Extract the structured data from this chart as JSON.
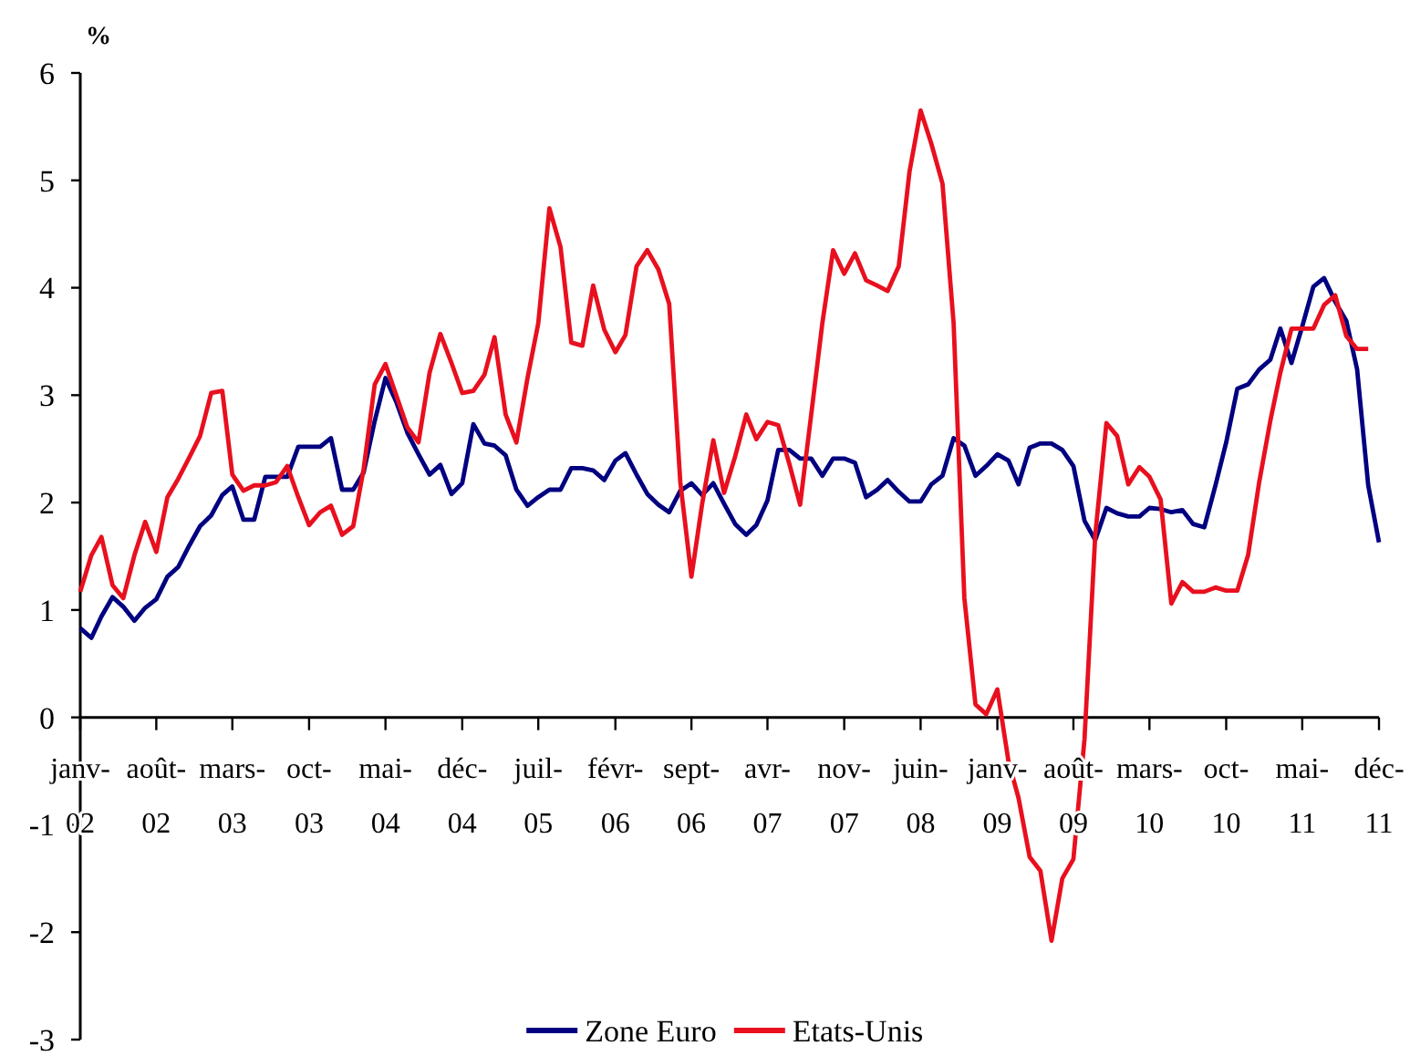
{
  "chart_data": {
    "type": "line",
    "ylabel": "%",
    "x": [
      "2002-01",
      "2002-02",
      "2002-03",
      "2002-04",
      "2002-05",
      "2002-06",
      "2002-07",
      "2002-08",
      "2002-09",
      "2002-10",
      "2002-11",
      "2002-12",
      "2003-01",
      "2003-02",
      "2003-03",
      "2003-04",
      "2003-05",
      "2003-06",
      "2003-07",
      "2003-08",
      "2003-09",
      "2003-10",
      "2003-11",
      "2003-12",
      "2004-01",
      "2004-02",
      "2004-03",
      "2004-04",
      "2004-05",
      "2004-06",
      "2004-07",
      "2004-08",
      "2004-09",
      "2004-10",
      "2004-11",
      "2004-12",
      "2005-01",
      "2005-02",
      "2005-03",
      "2005-04",
      "2005-05",
      "2005-06",
      "2005-07",
      "2005-08",
      "2005-09",
      "2005-10",
      "2005-11",
      "2005-12",
      "2006-01",
      "2006-02",
      "2006-03",
      "2006-04",
      "2006-05",
      "2006-06",
      "2006-07",
      "2006-08",
      "2006-09",
      "2006-10",
      "2006-11",
      "2006-12",
      "2007-01",
      "2007-02",
      "2007-03",
      "2007-04",
      "2007-05",
      "2007-06",
      "2007-07",
      "2007-08",
      "2007-09",
      "2007-10",
      "2007-11",
      "2007-12",
      "2008-01",
      "2008-02",
      "2008-03",
      "2008-04",
      "2008-05",
      "2008-06",
      "2008-07",
      "2008-08",
      "2008-09",
      "2008-10",
      "2008-11",
      "2008-12",
      "2009-01",
      "2009-02",
      "2009-03",
      "2009-04",
      "2009-05",
      "2009-06",
      "2009-07",
      "2009-08",
      "2009-09",
      "2009-10",
      "2009-11",
      "2009-12",
      "2010-01",
      "2010-02",
      "2010-03",
      "2010-04",
      "2010-05",
      "2010-06",
      "2010-07",
      "2010-08",
      "2010-09",
      "2010-10",
      "2010-11",
      "2010-12",
      "2011-01",
      "2011-02",
      "2011-03",
      "2011-04",
      "2011-05",
      "2011-06",
      "2011-07",
      "2011-08",
      "2011-09",
      "2011-10",
      "2011-11",
      "2011-12"
    ],
    "series": [
      {
        "name": "Zone Euro",
        "color": "#000080",
        "values": [
          0.83,
          0.74,
          0.94,
          1.12,
          1.03,
          0.9,
          1.02,
          1.1,
          1.31,
          1.4,
          1.6,
          1.78,
          1.88,
          2.07,
          2.15,
          1.84,
          1.84,
          2.24,
          2.24,
          2.24,
          2.52,
          2.52,
          2.52,
          2.6,
          2.12,
          2.12,
          2.28,
          2.76,
          3.16,
          2.93,
          2.65,
          2.45,
          2.26,
          2.35,
          2.08,
          2.18,
          2.73,
          2.55,
          2.53,
          2.44,
          2.12,
          1.97,
          2.05,
          2.12,
          2.12,
          2.32,
          2.32,
          2.3,
          2.21,
          2.39,
          2.46,
          2.26,
          2.08,
          1.98,
          1.91,
          2.11,
          2.18,
          2.07,
          2.18,
          1.99,
          1.8,
          1.7,
          1.79,
          2.02,
          2.49,
          2.49,
          2.41,
          2.41,
          2.25,
          2.41,
          2.41,
          2.37,
          2.05,
          2.12,
          2.21,
          2.1,
          2.01,
          2.01,
          2.17,
          2.25,
          2.6,
          2.53,
          2.25,
          2.34,
          2.45,
          2.39,
          2.17,
          2.51,
          2.55,
          2.55,
          2.49,
          2.34,
          1.83,
          1.65,
          1.95,
          1.9,
          1.87,
          1.87,
          1.95,
          1.94,
          1.91,
          1.93,
          1.8,
          1.77,
          2.16,
          2.56,
          3.06,
          3.1,
          3.24,
          3.33,
          3.62,
          3.3,
          3.64,
          4.01,
          4.09,
          3.87,
          3.69,
          3.24,
          2.16,
          1.63
        ]
      },
      {
        "name": "Etats-Unis",
        "color": "#e8101e",
        "values": [
          1.17,
          1.51,
          1.68,
          1.23,
          1.11,
          1.51,
          1.82,
          1.54,
          2.05,
          2.22,
          2.42,
          2.62,
          3.02,
          3.04,
          2.26,
          2.11,
          2.16,
          2.16,
          2.19,
          2.34,
          2.05,
          1.79,
          1.91,
          1.97,
          1.7,
          1.78,
          2.31,
          3.1,
          3.29,
          2.99,
          2.7,
          2.56,
          3.21,
          3.57,
          3.3,
          3.02,
          3.04,
          3.19,
          3.54,
          2.82,
          2.56,
          3.16,
          3.67,
          4.74,
          4.38,
          3.49,
          3.46,
          4.02,
          3.61,
          3.4,
          3.56,
          4.2,
          4.35,
          4.17,
          3.85,
          2.19,
          1.31,
          1.99,
          2.58,
          2.09,
          2.43,
          2.82,
          2.59,
          2.75,
          2.72,
          2.36,
          1.98,
          2.82,
          3.67,
          4.35,
          4.13,
          4.32,
          4.07,
          4.02,
          3.97,
          4.2,
          5.08,
          5.65,
          5.34,
          4.97,
          3.67,
          1.11,
          0.12,
          0.03,
          0.26,
          -0.41,
          -0.75,
          -1.3,
          -1.43,
          -2.08,
          -1.5,
          -1.32,
          -0.2,
          1.7,
          2.74,
          2.62,
          2.17,
          2.33,
          2.24,
          2.03,
          1.06,
          1.26,
          1.17,
          1.17,
          1.21,
          1.18,
          1.18,
          1.51,
          2.19,
          2.76,
          3.21,
          3.62,
          3.62,
          3.62,
          3.84,
          3.93,
          3.55,
          3.43,
          3.43,
          null
        ]
      }
    ],
    "xlim": [
      "2002-01",
      "2011-12"
    ],
    "xticks": [
      {
        "value": "2002-01",
        "label": "janv-02"
      },
      {
        "value": "2002-08",
        "label": "août-02"
      },
      {
        "value": "2003-03",
        "label": "mars-03"
      },
      {
        "value": "2003-10",
        "label": "oct-03"
      },
      {
        "value": "2004-05",
        "label": "mai-04"
      },
      {
        "value": "2004-12",
        "label": "déc-04"
      },
      {
        "value": "2005-07",
        "label": "juil-05"
      },
      {
        "value": "2006-02",
        "label": "févr-06"
      },
      {
        "value": "2006-09",
        "label": "sept-06"
      },
      {
        "value": "2007-04",
        "label": "avr-07"
      },
      {
        "value": "2007-11",
        "label": "nov-07"
      },
      {
        "value": "2008-06",
        "label": "juin-08"
      },
      {
        "value": "2009-01",
        "label": "janv-09"
      },
      {
        "value": "2009-08",
        "label": "août-09"
      },
      {
        "value": "2010-03",
        "label": "mars-10"
      },
      {
        "value": "2010-10",
        "label": "oct-10"
      },
      {
        "value": "2011-05",
        "label": "mai-11"
      },
      {
        "value": "2011-12",
        "label": "déc-11"
      }
    ],
    "ylim": [
      -3,
      6
    ],
    "yticks": [
      -3,
      -2,
      -1,
      0,
      1,
      2,
      3,
      4,
      5,
      6
    ],
    "grid": false,
    "legend": "bottom",
    "line_style": "solid",
    "marker": "none"
  }
}
